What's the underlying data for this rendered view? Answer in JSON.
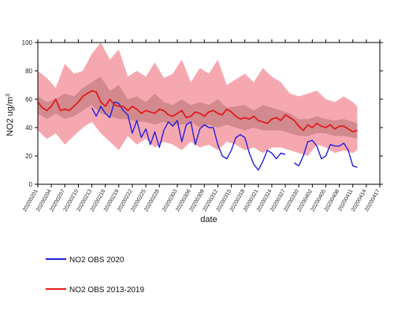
{
  "chart_data": {
    "type": "line",
    "title": "",
    "xlabel": "date",
    "ylabel": {
      "base": "NO2  ug/m",
      "superscript": "3"
    },
    "ylim": [
      0,
      100
    ],
    "yticks": [
      0,
      20,
      40,
      60,
      80,
      100
    ],
    "x_start": "20200201",
    "x_end": "20200417",
    "x_tick_labels": [
      "20200201",
      "20200204",
      "20200207",
      "20200210",
      "20200213",
      "20200216",
      "20200219",
      "20200222",
      "20200225",
      "20200228",
      "20200303",
      "20200306",
      "20200309",
      "20200312",
      "20200315",
      "20200318",
      "20200321",
      "20200324",
      "20200327",
      "20200330",
      "20200402",
      "20200405",
      "20200408",
      "20200411",
      "20200414",
      "20200417"
    ],
    "grid": false,
    "legend_position": "bottom-left",
    "series": [
      {
        "name": "NO2 OBS 2020",
        "color": "#1f1fe0",
        "points": [
          [
            "20200213",
            54
          ],
          [
            "20200214",
            48
          ],
          [
            "20200215",
            55
          ],
          [
            "20200216",
            50
          ],
          [
            "20200217",
            47
          ],
          [
            "20200218",
            58
          ],
          [
            "20200219",
            57
          ],
          [
            "20200220",
            52
          ],
          [
            "20200221",
            49
          ],
          [
            "20200222",
            36
          ],
          [
            "20200223",
            45
          ],
          [
            "20200224",
            33
          ],
          [
            "20200225",
            39
          ],
          [
            "20200226",
            28
          ],
          [
            "20200227",
            37
          ],
          [
            "20200228",
            26
          ],
          [
            "20200229",
            38
          ],
          [
            "20200301",
            44
          ],
          [
            "20200302",
            41
          ],
          [
            "20200303",
            45
          ],
          [
            "20200304",
            30
          ],
          [
            "20200305",
            42
          ],
          [
            "20200306",
            44
          ],
          [
            "20200307",
            28
          ],
          [
            "20200308",
            39
          ],
          [
            "20200309",
            42
          ],
          [
            "20200310",
            40
          ],
          [
            "20200311",
            40
          ],
          [
            "20200312",
            28
          ],
          [
            "20200313",
            20
          ],
          [
            "20200314",
            18
          ],
          [
            "20200315",
            24
          ],
          [
            "20200316",
            33
          ],
          [
            "20200317",
            35
          ],
          [
            "20200318",
            33
          ],
          [
            "20200319",
            22
          ],
          [
            "20200320",
            14
          ],
          [
            "20200321",
            10
          ],
          [
            "20200322",
            16
          ],
          [
            "20200323",
            24
          ],
          [
            "20200324",
            22
          ],
          [
            "20200325",
            18
          ],
          [
            "20200326",
            22
          ],
          [
            "20200327",
            21
          ],
          [
            "20200328",
            null
          ],
          [
            "20200329",
            15
          ],
          [
            "20200330",
            13
          ],
          [
            "20200331",
            20
          ],
          [
            "20200401",
            30
          ],
          [
            "20200402",
            31
          ],
          [
            "20200403",
            27
          ],
          [
            "20200404",
            18
          ],
          [
            "20200405",
            20
          ],
          [
            "20200406",
            28
          ],
          [
            "20200407",
            27
          ],
          [
            "20200408",
            27
          ],
          [
            "20200409",
            29
          ],
          [
            "20200410",
            24
          ],
          [
            "20200411",
            13
          ],
          [
            "20200412",
            12
          ]
        ]
      },
      {
        "name": "NO2 OBS 2013-2019",
        "color": "#e01b1b",
        "points": [
          [
            "20200201",
            58
          ],
          [
            "20200202",
            54
          ],
          [
            "20200203",
            52
          ],
          [
            "20200204",
            55
          ],
          [
            "20200205",
            60
          ],
          [
            "20200206",
            52
          ],
          [
            "20200207",
            53
          ],
          [
            "20200208",
            52
          ],
          [
            "20200209",
            55
          ],
          [
            "20200210",
            58
          ],
          [
            "20200211",
            62
          ],
          [
            "20200212",
            64
          ],
          [
            "20200213",
            66
          ],
          [
            "20200214",
            65
          ],
          [
            "20200215",
            58
          ],
          [
            "20200216",
            55
          ],
          [
            "20200217",
            60
          ],
          [
            "20200218",
            56
          ],
          [
            "20200219",
            55
          ],
          [
            "20200220",
            55
          ],
          [
            "20200221",
            52
          ],
          [
            "20200222",
            55
          ],
          [
            "20200223",
            53
          ],
          [
            "20200224",
            50
          ],
          [
            "20200225",
            52
          ],
          [
            "20200226",
            51
          ],
          [
            "20200227",
            50
          ],
          [
            "20200228",
            53
          ],
          [
            "20200229",
            52
          ],
          [
            "20200301",
            49
          ],
          [
            "20200302",
            48
          ],
          [
            "20200303",
            50
          ],
          [
            "20200304",
            52
          ],
          [
            "20200305",
            47
          ],
          [
            "20200306",
            48
          ],
          [
            "20200307",
            51
          ],
          [
            "20200308",
            50
          ],
          [
            "20200309",
            48
          ],
          [
            "20200310",
            51
          ],
          [
            "20200311",
            52
          ],
          [
            "20200312",
            50
          ],
          [
            "20200313",
            49
          ],
          [
            "20200314",
            53
          ],
          [
            "20200315",
            51
          ],
          [
            "20200316",
            48
          ],
          [
            "20200317",
            46
          ],
          [
            "20200318",
            47
          ],
          [
            "20200319",
            46
          ],
          [
            "20200320",
            48
          ],
          [
            "20200321",
            45
          ],
          [
            "20200322",
            44
          ],
          [
            "20200323",
            43
          ],
          [
            "20200324",
            46
          ],
          [
            "20200325",
            47
          ],
          [
            "20200326",
            45
          ],
          [
            "20200327",
            49
          ],
          [
            "20200328",
            47
          ],
          [
            "20200329",
            45
          ],
          [
            "20200330",
            41
          ],
          [
            "20200331",
            38
          ],
          [
            "20200401",
            42
          ],
          [
            "20200402",
            40
          ],
          [
            "20200403",
            43
          ],
          [
            "20200404",
            41
          ],
          [
            "20200405",
            40
          ],
          [
            "20200406",
            42
          ],
          [
            "20200407",
            39
          ],
          [
            "20200408",
            41
          ],
          [
            "20200409",
            41
          ],
          [
            "20200410",
            39
          ],
          [
            "20200411",
            37
          ],
          [
            "20200412",
            38
          ]
        ]
      }
    ],
    "bands": [
      {
        "label": "outer range",
        "color": "#f6a8b0",
        "x": [
          "20200201",
          "20200203",
          "20200205",
          "20200207",
          "20200209",
          "20200211",
          "20200213",
          "20200215",
          "20200217",
          "20200219",
          "20200221",
          "20200223",
          "20200225",
          "20200227",
          "20200229",
          "20200302",
          "20200304",
          "20200306",
          "20200308",
          "20200310",
          "20200312",
          "20200314",
          "20200316",
          "20200318",
          "20200320",
          "20200322",
          "20200324",
          "20200326",
          "20200328",
          "20200330",
          "20200401",
          "20200403",
          "20200405",
          "20200407",
          "20200409",
          "20200411",
          "20200412"
        ],
        "upper": [
          80,
          75,
          68,
          85,
          78,
          80,
          92,
          100,
          88,
          95,
          76,
          80,
          76,
          86,
          75,
          78,
          88,
          72,
          82,
          78,
          88,
          70,
          74,
          78,
          72,
          82,
          76,
          72,
          64,
          62,
          64,
          66,
          60,
          58,
          62,
          58,
          55
        ],
        "lower": [
          38,
          32,
          36,
          28,
          34,
          40,
          44,
          36,
          30,
          24,
          34,
          28,
          32,
          26,
          30,
          28,
          24,
          30,
          26,
          28,
          24,
          30,
          28,
          24,
          26,
          22,
          26,
          26,
          24,
          22,
          20,
          28,
          26,
          22,
          24,
          22,
          24
        ]
      },
      {
        "label": "inner range",
        "color": "#d28a8f",
        "x": [
          "20200201",
          "20200203",
          "20200205",
          "20200207",
          "20200209",
          "20200211",
          "20200213",
          "20200215",
          "20200217",
          "20200219",
          "20200221",
          "20200223",
          "20200225",
          "20200227",
          "20200229",
          "20200302",
          "20200304",
          "20200306",
          "20200308",
          "20200310",
          "20200312",
          "20200314",
          "20200316",
          "20200318",
          "20200320",
          "20200322",
          "20200324",
          "20200326",
          "20200328",
          "20200330",
          "20200401",
          "20200403",
          "20200405",
          "20200407",
          "20200409",
          "20200411",
          "20200412"
        ],
        "upper": [
          62,
          58,
          60,
          64,
          62,
          68,
          72,
          76,
          66,
          70,
          60,
          62,
          58,
          64,
          58,
          56,
          60,
          56,
          58,
          56,
          60,
          54,
          55,
          56,
          52,
          56,
          54,
          52,
          50,
          46,
          46,
          48,
          46,
          45,
          46,
          44,
          43
        ],
        "lower": [
          50,
          46,
          50,
          46,
          48,
          52,
          56,
          50,
          48,
          46,
          46,
          44,
          44,
          42,
          44,
          42,
          42,
          44,
          40,
          42,
          40,
          42,
          40,
          38,
          40,
          38,
          38,
          38,
          36,
          34,
          34,
          36,
          36,
          34,
          34,
          33,
          32
        ]
      }
    ]
  },
  "legend": {
    "items": [
      {
        "label": "NO2 OBS 2020",
        "color": "#1f1fe0"
      },
      {
        "label": "NO2 OBS 2013-2019",
        "color": "#e01b1b"
      }
    ]
  }
}
